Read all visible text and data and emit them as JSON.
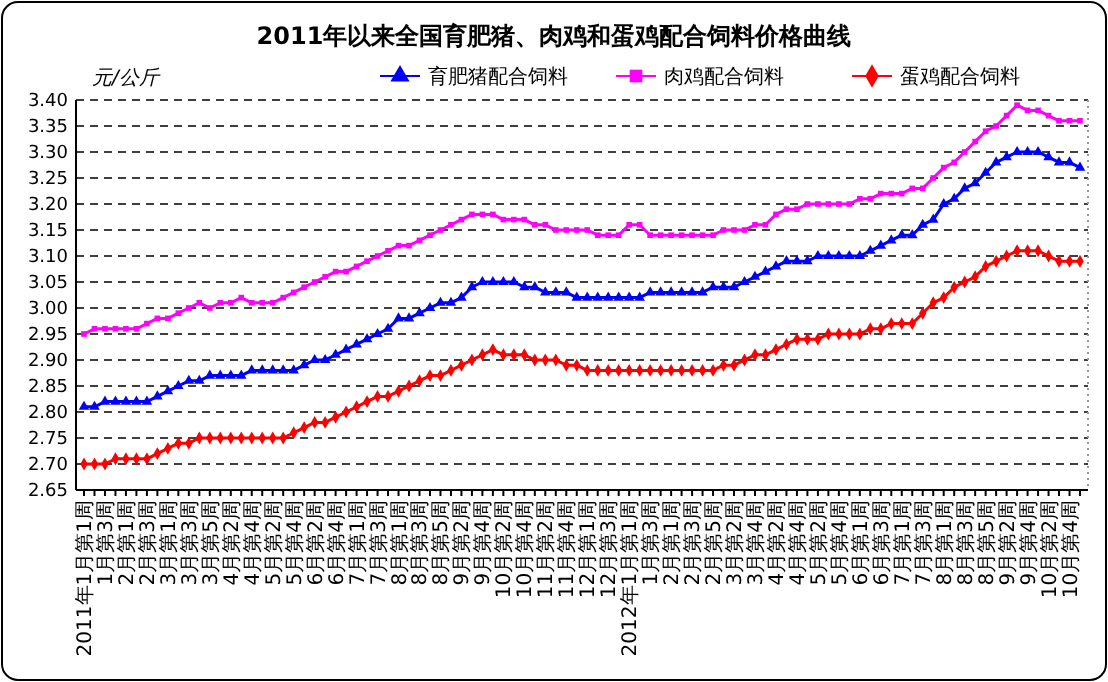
{
  "chart_data": {
    "type": "line",
    "title": "2011年以来全国育肥猪、肉鸡和蛋鸡配合饲料价格曲线",
    "ylabel": "元/公斤",
    "categories": [
      "2011年1月第1周",
      null,
      "1月第3周",
      null,
      "2月第1周",
      null,
      "2月第3周",
      null,
      "3月第1周",
      null,
      "3月第3周",
      null,
      "3月第5周",
      null,
      "4月第2周",
      null,
      "4月第4周",
      null,
      "5月第2周",
      null,
      "5月第4周",
      null,
      "6月第2周",
      null,
      "6月第4周",
      null,
      "7月第1周",
      null,
      "7月第3周",
      null,
      "8月第1周",
      null,
      "8月第3周",
      null,
      "8月第5周",
      null,
      "9月第2周",
      null,
      "9月第4周",
      null,
      "10月第2周",
      null,
      "10月第4周",
      null,
      "11月第2周",
      null,
      "11月第4周",
      null,
      "12月第1周",
      null,
      "12月第3周",
      null,
      "2012年1月第1周",
      null,
      "1月第3周",
      null,
      "2月第1周",
      null,
      "2月第3周",
      null,
      "2月第5周",
      null,
      "3月第2周",
      null,
      "3月第4周",
      null,
      "4月第2周",
      null,
      "4月第4周",
      null,
      "5月第2周",
      null,
      "5月第4周",
      null,
      "6月第1周",
      null,
      "6月第3周",
      null,
      "7月第1周",
      null,
      "7月第3周",
      null,
      "8月第1周",
      null,
      "8月第3周",
      null,
      "8月第5周",
      null,
      "9月第2周",
      null,
      "9月第4周",
      null,
      "10月第2周",
      null,
      "10月第4周",
      null
    ],
    "series": [
      {
        "name": "育肥猪配合饲料",
        "color": "#0000ff",
        "marker": "triangle",
        "values": [
          2.81,
          2.81,
          2.82,
          2.82,
          2.82,
          2.82,
          2.82,
          2.83,
          2.84,
          2.85,
          2.86,
          2.86,
          2.87,
          2.87,
          2.87,
          2.87,
          2.88,
          2.88,
          2.88,
          2.88,
          2.88,
          2.89,
          2.9,
          2.9,
          2.91,
          2.92,
          2.93,
          2.94,
          2.95,
          2.96,
          2.98,
          2.98,
          2.99,
          3.0,
          3.01,
          3.01,
          3.02,
          3.04,
          3.05,
          3.05,
          3.05,
          3.05,
          3.04,
          3.04,
          3.03,
          3.03,
          3.03,
          3.02,
          3.02,
          3.02,
          3.02,
          3.02,
          3.02,
          3.02,
          3.03,
          3.03,
          3.03,
          3.03,
          3.03,
          3.03,
          3.04,
          3.04,
          3.04,
          3.05,
          3.06,
          3.07,
          3.08,
          3.09,
          3.09,
          3.09,
          3.1,
          3.1,
          3.1,
          3.1,
          3.1,
          3.11,
          3.12,
          3.13,
          3.14,
          3.14,
          3.16,
          3.17,
          3.2,
          3.21,
          3.23,
          3.24,
          3.26,
          3.28,
          3.29,
          3.3,
          3.3,
          3.3,
          3.29,
          3.28,
          3.28,
          3.27
        ]
      },
      {
        "name": "肉鸡配合饲料",
        "color": "#ff00ff",
        "marker": "square",
        "values": [
          2.95,
          2.96,
          2.96,
          2.96,
          2.96,
          2.96,
          2.97,
          2.98,
          2.98,
          2.99,
          3.0,
          3.01,
          3.0,
          3.01,
          3.01,
          3.02,
          3.01,
          3.01,
          3.01,
          3.02,
          3.03,
          3.04,
          3.05,
          3.06,
          3.07,
          3.07,
          3.08,
          3.09,
          3.1,
          3.11,
          3.12,
          3.12,
          3.13,
          3.14,
          3.15,
          3.16,
          3.17,
          3.18,
          3.18,
          3.18,
          3.17,
          3.17,
          3.17,
          3.16,
          3.16,
          3.15,
          3.15,
          3.15,
          3.15,
          3.14,
          3.14,
          3.14,
          3.16,
          3.16,
          3.14,
          3.14,
          3.14,
          3.14,
          3.14,
          3.14,
          3.14,
          3.15,
          3.15,
          3.15,
          3.16,
          3.16,
          3.18,
          3.19,
          3.19,
          3.2,
          3.2,
          3.2,
          3.2,
          3.2,
          3.21,
          3.21,
          3.22,
          3.22,
          3.22,
          3.23,
          3.23,
          3.25,
          3.27,
          3.28,
          3.3,
          3.32,
          3.34,
          3.35,
          3.37,
          3.39,
          3.38,
          3.38,
          3.37,
          3.36,
          3.36,
          3.36
        ]
      },
      {
        "name": "蛋鸡配合饲料",
        "color": "#ff0000",
        "marker": "diamond",
        "values": [
          2.7,
          2.7,
          2.7,
          2.71,
          2.71,
          2.71,
          2.71,
          2.72,
          2.73,
          2.74,
          2.74,
          2.75,
          2.75,
          2.75,
          2.75,
          2.75,
          2.75,
          2.75,
          2.75,
          2.75,
          2.76,
          2.77,
          2.78,
          2.78,
          2.79,
          2.8,
          2.81,
          2.82,
          2.83,
          2.83,
          2.84,
          2.85,
          2.86,
          2.87,
          2.87,
          2.88,
          2.89,
          2.9,
          2.91,
          2.92,
          2.91,
          2.91,
          2.91,
          2.9,
          2.9,
          2.9,
          2.89,
          2.89,
          2.88,
          2.88,
          2.88,
          2.88,
          2.88,
          2.88,
          2.88,
          2.88,
          2.88,
          2.88,
          2.88,
          2.88,
          2.88,
          2.89,
          2.89,
          2.9,
          2.91,
          2.91,
          2.92,
          2.93,
          2.94,
          2.94,
          2.94,
          2.95,
          2.95,
          2.95,
          2.95,
          2.96,
          2.96,
          2.97,
          2.97,
          2.97,
          2.99,
          3.01,
          3.02,
          3.04,
          3.05,
          3.06,
          3.08,
          3.09,
          3.1,
          3.11,
          3.11,
          3.11,
          3.1,
          3.09,
          3.09,
          3.09
        ]
      }
    ],
    "ylim": [
      2.65,
      3.4
    ],
    "yticks": [
      {
        "value": 2.65,
        "label": "2.65"
      },
      {
        "value": 2.7,
        "label": "2.70"
      },
      {
        "value": 2.75,
        "label": "2.75"
      },
      {
        "value": 2.8,
        "label": "2.80"
      },
      {
        "value": 2.85,
        "label": "2.85"
      },
      {
        "value": 2.9,
        "label": "2.90"
      },
      {
        "value": 2.95,
        "label": "2.95"
      },
      {
        "value": 3.0,
        "label": "3.00"
      },
      {
        "value": 3.05,
        "label": "3.05"
      },
      {
        "value": 3.1,
        "label": "3.10"
      },
      {
        "value": 3.15,
        "label": "3.15"
      },
      {
        "value": 3.2,
        "label": "3.20"
      },
      {
        "value": 3.25,
        "label": "3.25"
      },
      {
        "value": 3.3,
        "label": "3.30"
      },
      {
        "value": 3.35,
        "label": "3.35"
      },
      {
        "value": 3.4,
        "label": "3.40"
      }
    ],
    "grid": "y",
    "legend": "top right",
    "line_style": "solid"
  }
}
